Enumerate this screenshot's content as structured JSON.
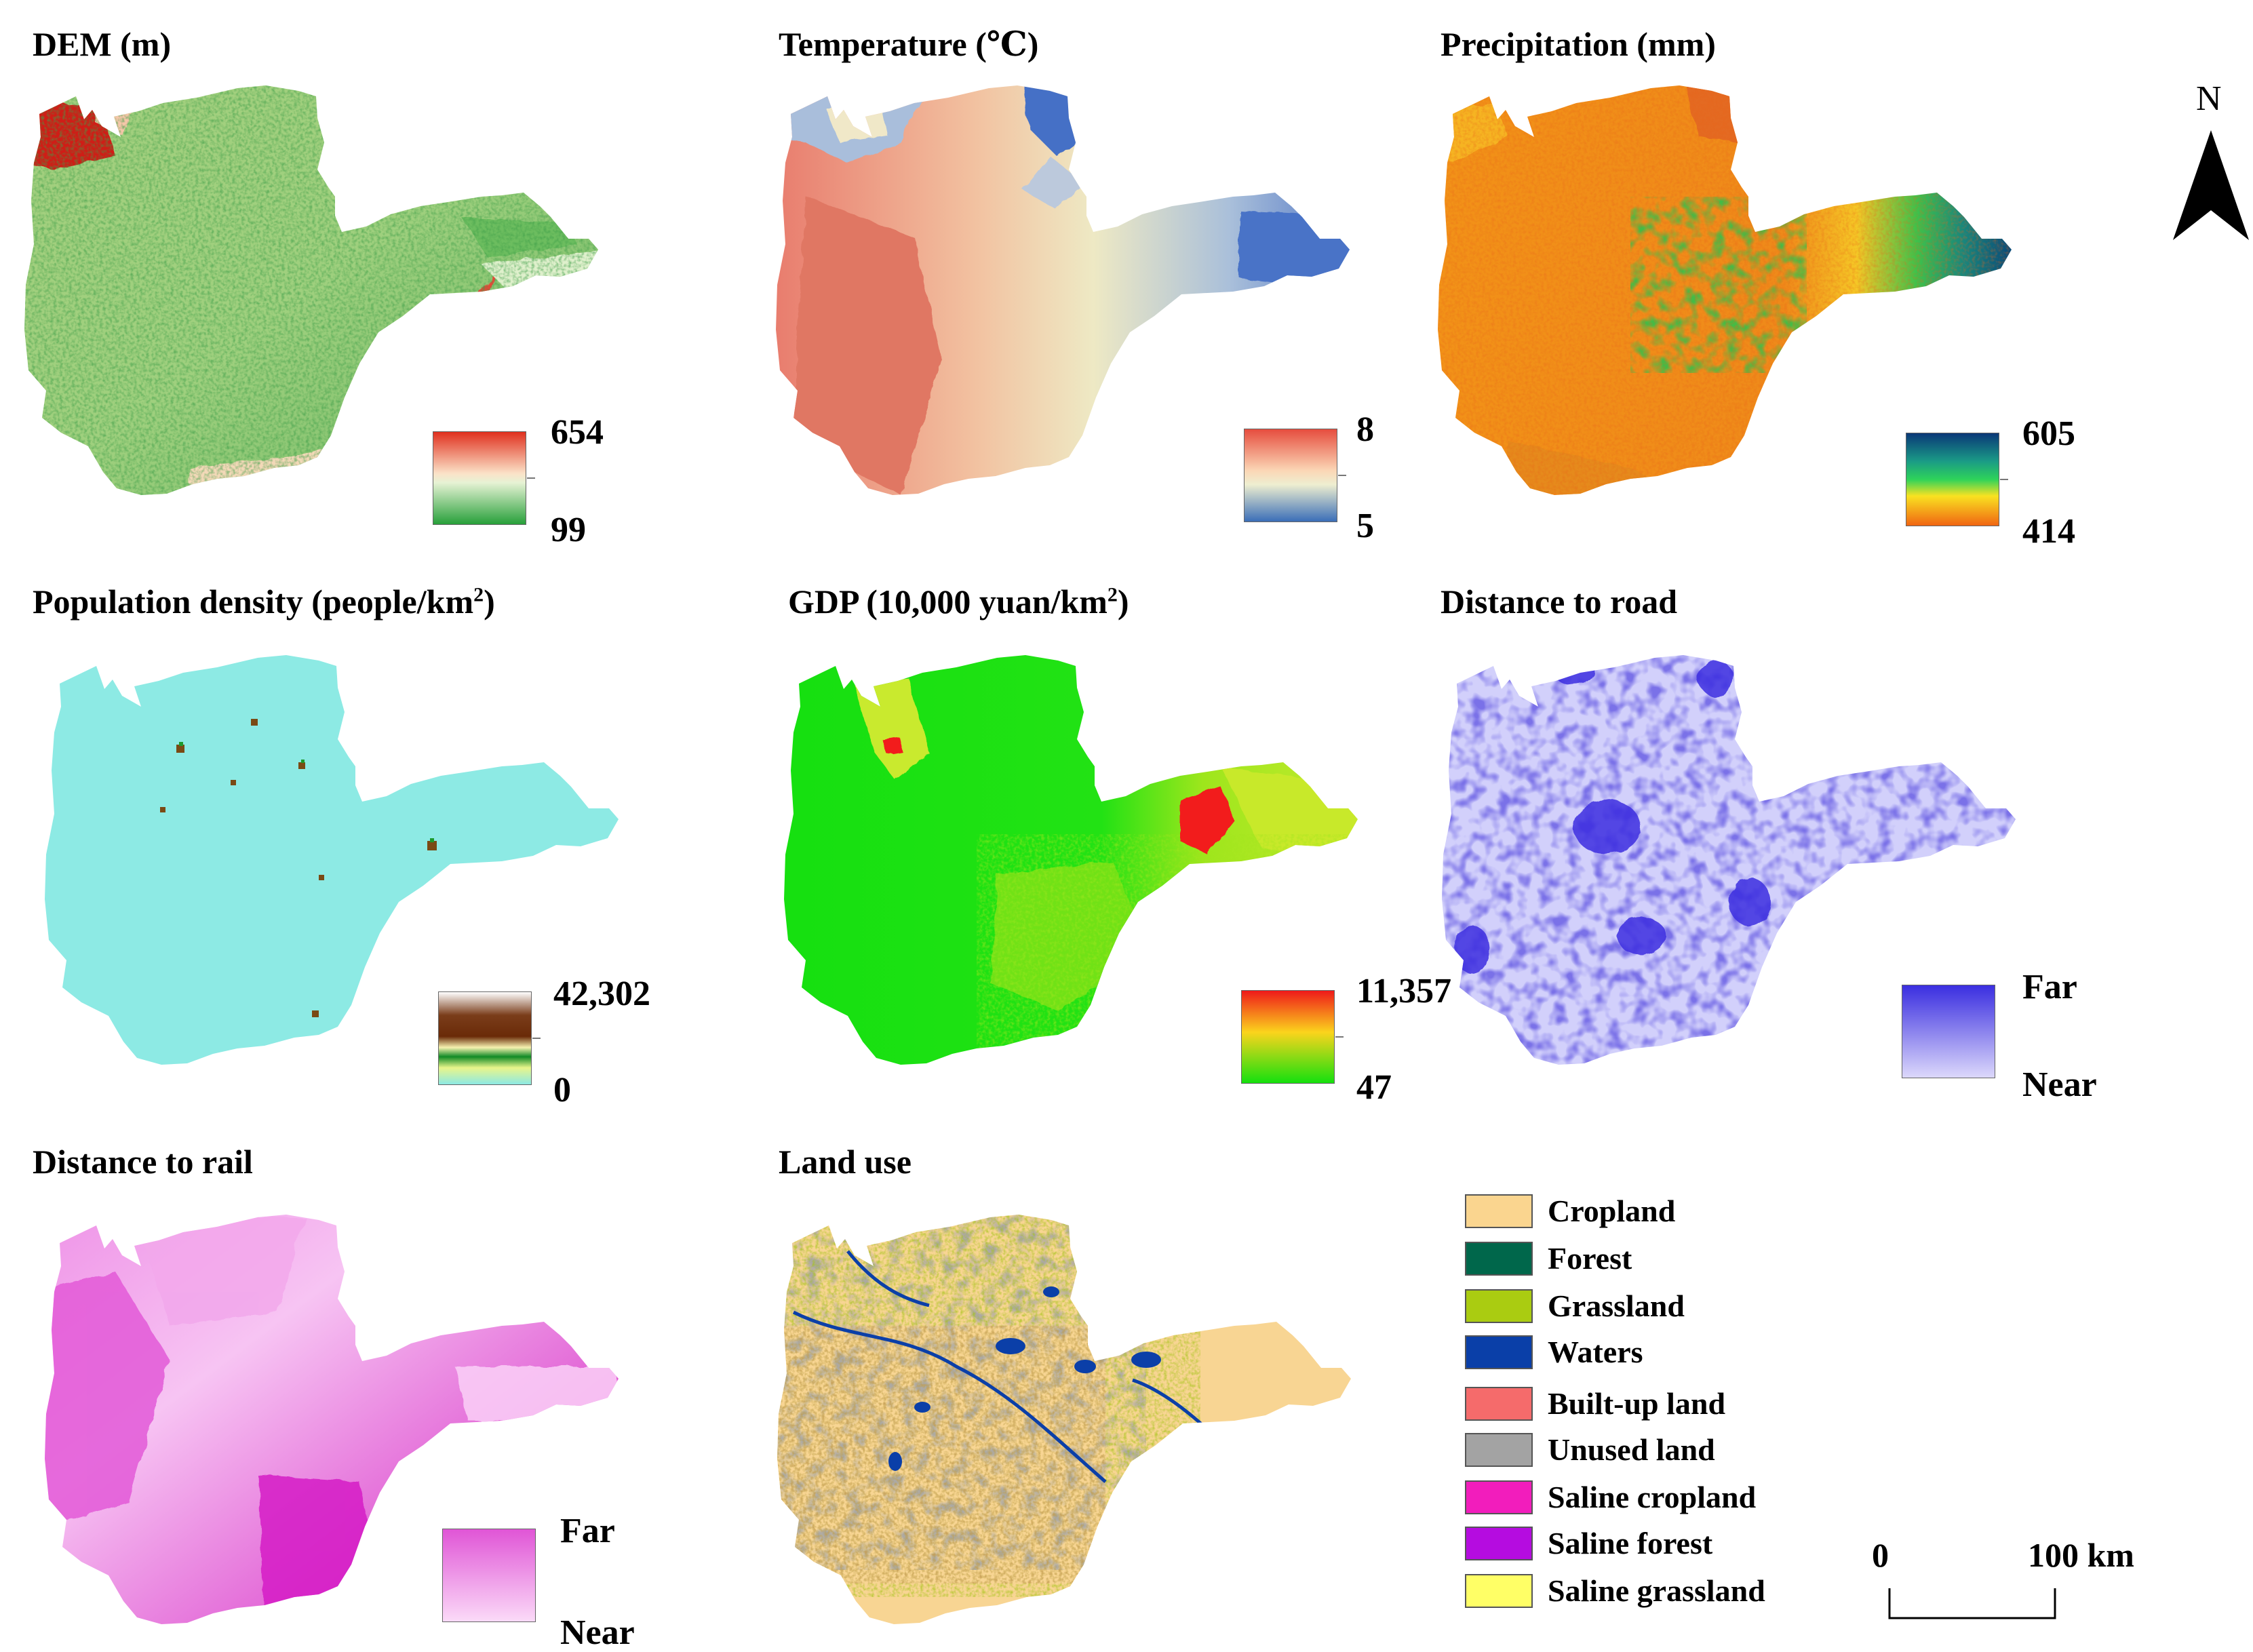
{
  "panels": {
    "dem": {
      "title": "DEM (m)",
      "max": "654",
      "min": "99"
    },
    "temperature": {
      "title": "Temperature (℃)",
      "max": "8",
      "min": "5"
    },
    "precipitation": {
      "title": "Precipitation (mm)",
      "max": "605",
      "min": "414"
    },
    "population": {
      "title_main": "Population density (people/km",
      "title_sup": "2",
      "title_end": ")",
      "max": "42,302",
      "min": "0"
    },
    "gdp": {
      "title_main": "GDP (10,000 yuan/km",
      "title_sup": "2",
      "title_end": ")",
      "max": "11,357",
      "min": "47"
    },
    "road": {
      "title": "Distance to road",
      "max": "Far",
      "min": "Near"
    },
    "rail": {
      "title": "Distance to rail",
      "max": "Far",
      "min": "Near"
    },
    "landuse": {
      "title": "Land use"
    }
  },
  "landuse_legend": [
    {
      "label": "Cropland",
      "color": "#fad58f"
    },
    {
      "label": "Forest",
      "color": "#00674b"
    },
    {
      "label": "Grassland",
      "color": "#aacc11"
    },
    {
      "label": "Waters",
      "color": "#0a3fa8"
    },
    {
      "label": "Built-up land",
      "color": "#f56b6b"
    },
    {
      "label": "Unused land",
      "color": "#a3a3a3"
    },
    {
      "label": "Saline cropland",
      "color": "#f21dbc"
    },
    {
      "label": "Saline forest",
      "color": "#b50ce0"
    },
    {
      "label": "Saline grassland",
      "color": "#ffff66"
    }
  ],
  "north_arrow": {
    "label": "N"
  },
  "scale_bar": {
    "start": "0",
    "end": "100 km"
  }
}
